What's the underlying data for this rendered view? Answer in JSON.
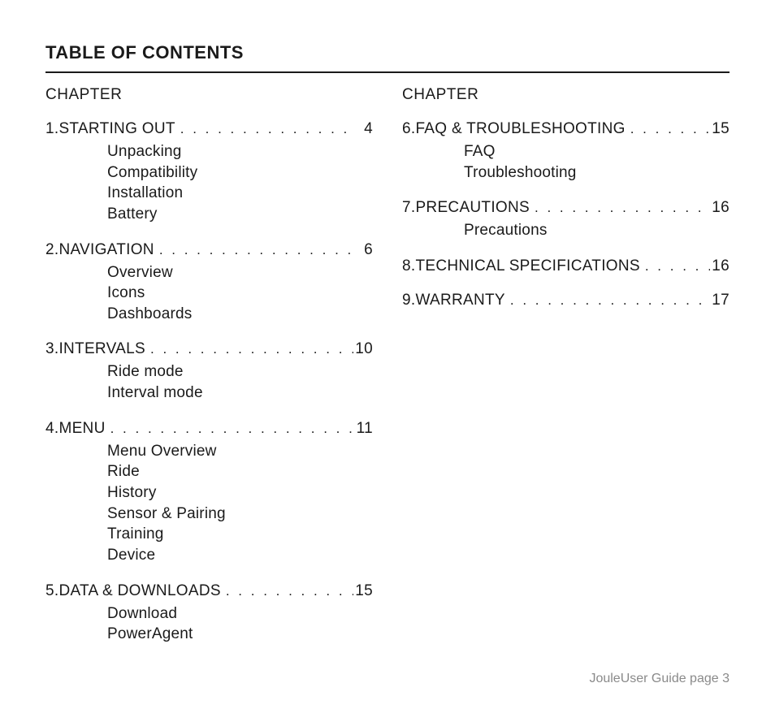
{
  "title": "TABLE OF CONTENTS",
  "column_header": "CHAPTER",
  "colors": {
    "text": "#1a1a1a",
    "footer": "#8a8a8a",
    "background": "#ffffff",
    "rule": "#1a1a1a"
  },
  "typography": {
    "title_fontsize": 22,
    "body_fontsize": 19,
    "footer_fontsize": 16,
    "font_family": "Helvetica Neue Condensed"
  },
  "left": {
    "chapters": [
      {
        "num": "1.",
        "title": "STARTING OUT",
        "page": "4",
        "items": [
          "Unpacking",
          "Compatibility",
          "Installation",
          "Battery"
        ]
      },
      {
        "num": "2.",
        "title": "NAVIGATION",
        "page": "6",
        "items": [
          "Overview",
          "Icons",
          "Dashboards"
        ]
      },
      {
        "num": "3.",
        "title": "INTERVALS",
        "page": "10",
        "items": [
          "Ride mode",
          "Interval mode"
        ]
      },
      {
        "num": "4.",
        "title": "MENU",
        "page": "11",
        "items": [
          "Menu Overview",
          "Ride",
          "History",
          "Sensor & Pairing",
          "Training",
          "Device"
        ]
      },
      {
        "num": "5.",
        "title": "DATA & DOWNLOADS",
        "page": "15",
        "items": [
          "Download",
          "PowerAgent"
        ]
      }
    ]
  },
  "right": {
    "chapters": [
      {
        "num": "6.",
        "title": "FAQ & TROUBLESHOOTING",
        "page": "15",
        "items": [
          "FAQ",
          "Troubleshooting"
        ]
      },
      {
        "num": "7.",
        "title": "PRECAUTIONS",
        "page": "16",
        "items": [
          "Precautions"
        ]
      },
      {
        "num": "8.",
        "title": "TECHNICAL SPECIFICATIONS",
        "page": "16",
        "items": []
      },
      {
        "num": "9.",
        "title": "WARRANTY",
        "page": "17",
        "items": []
      }
    ]
  },
  "footer": "JouleUser Guide page 3"
}
